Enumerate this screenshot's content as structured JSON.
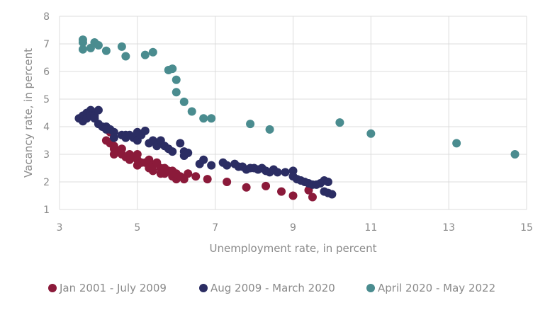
{
  "chart_data": {
    "type": "scatter",
    "title": "",
    "xlabel": "Unemployment rate, in percent",
    "ylabel": "Vacancy rate, in percent",
    "xlim": [
      3,
      15
    ],
    "ylim": [
      1,
      8
    ],
    "xticks": [
      3,
      5,
      7,
      9,
      11,
      13,
      15
    ],
    "yticks": [
      1,
      2,
      3,
      4,
      5,
      6,
      7,
      8
    ],
    "grid": true,
    "legend_position": "bottom",
    "series": [
      {
        "name": "Jan 2001 - July 2009",
        "color": "#8b1a3a",
        "points": [
          [
            4.2,
            3.5
          ],
          [
            4.3,
            3.8
          ],
          [
            4.3,
            3.4
          ],
          [
            4.4,
            3.3
          ],
          [
            4.4,
            3.2
          ],
          [
            4.5,
            3.1
          ],
          [
            4.4,
            3.0
          ],
          [
            4.6,
            3.2
          ],
          [
            4.6,
            3.0
          ],
          [
            4.7,
            2.9
          ],
          [
            4.8,
            3.0
          ],
          [
            4.8,
            2.8
          ],
          [
            4.9,
            2.9
          ],
          [
            5.0,
            3.0
          ],
          [
            5.0,
            2.8
          ],
          [
            5.1,
            2.7
          ],
          [
            5.0,
            2.6
          ],
          [
            5.2,
            2.7
          ],
          [
            5.3,
            2.8
          ],
          [
            5.3,
            2.5
          ],
          [
            5.4,
            2.6
          ],
          [
            5.4,
            2.4
          ],
          [
            5.5,
            2.7
          ],
          [
            5.6,
            2.5
          ],
          [
            5.6,
            2.3
          ],
          [
            5.7,
            2.5
          ],
          [
            5.7,
            2.3
          ],
          [
            5.8,
            2.4
          ],
          [
            5.9,
            2.2
          ],
          [
            5.9,
            2.4
          ],
          [
            6.0,
            2.1
          ],
          [
            6.0,
            2.3
          ],
          [
            6.1,
            2.2
          ],
          [
            6.2,
            2.1
          ],
          [
            6.3,
            2.3
          ],
          [
            6.5,
            2.2
          ],
          [
            6.8,
            2.1
          ],
          [
            7.3,
            2.0
          ],
          [
            7.8,
            1.8
          ],
          [
            8.3,
            1.85
          ],
          [
            8.7,
            1.65
          ],
          [
            9.0,
            1.5
          ],
          [
            9.4,
            1.7
          ],
          [
            9.5,
            1.45
          ]
        ]
      },
      {
        "name": "Aug 2009 - March 2020",
        "color": "#2b2d63",
        "points": [
          [
            3.5,
            4.3
          ],
          [
            3.6,
            4.4
          ],
          [
            3.6,
            4.2
          ],
          [
            3.7,
            4.5
          ],
          [
            3.7,
            4.3
          ],
          [
            3.8,
            4.6
          ],
          [
            3.8,
            4.4
          ],
          [
            3.9,
            4.4
          ],
          [
            3.9,
            4.3
          ],
          [
            4.0,
            4.6
          ],
          [
            4.0,
            4.1
          ],
          [
            4.1,
            4.0
          ],
          [
            4.2,
            4.0
          ],
          [
            4.2,
            3.9
          ],
          [
            4.3,
            3.9
          ],
          [
            4.4,
            3.8
          ],
          [
            4.4,
            3.6
          ],
          [
            4.6,
            3.7
          ],
          [
            4.7,
            3.7
          ],
          [
            4.7,
            3.6
          ],
          [
            4.8,
            3.7
          ],
          [
            4.9,
            3.6
          ],
          [
            5.0,
            3.8
          ],
          [
            5.0,
            3.5
          ],
          [
            5.1,
            3.7
          ],
          [
            5.2,
            3.85
          ],
          [
            5.3,
            3.4
          ],
          [
            5.4,
            3.5
          ],
          [
            5.5,
            3.3
          ],
          [
            5.6,
            3.5
          ],
          [
            5.7,
            3.3
          ],
          [
            5.8,
            3.2
          ],
          [
            5.9,
            3.1
          ],
          [
            6.1,
            3.4
          ],
          [
            6.2,
            3.1
          ],
          [
            6.2,
            2.95
          ],
          [
            6.3,
            3.05
          ],
          [
            6.6,
            2.65
          ],
          [
            6.7,
            2.8
          ],
          [
            6.9,
            2.6
          ],
          [
            7.2,
            2.7
          ],
          [
            7.3,
            2.6
          ],
          [
            7.5,
            2.65
          ],
          [
            7.6,
            2.55
          ],
          [
            7.7,
            2.55
          ],
          [
            7.8,
            2.45
          ],
          [
            7.9,
            2.5
          ],
          [
            8.0,
            2.5
          ],
          [
            8.1,
            2.45
          ],
          [
            8.2,
            2.5
          ],
          [
            8.3,
            2.4
          ],
          [
            8.4,
            2.35
          ],
          [
            8.5,
            2.45
          ],
          [
            8.6,
            2.35
          ],
          [
            8.8,
            2.35
          ],
          [
            9.0,
            2.4
          ],
          [
            9.0,
            2.2
          ],
          [
            9.1,
            2.1
          ],
          [
            9.2,
            2.05
          ],
          [
            9.3,
            2.0
          ],
          [
            9.4,
            1.95
          ],
          [
            9.5,
            1.9
          ],
          [
            9.6,
            1.9
          ],
          [
            9.7,
            1.95
          ],
          [
            9.8,
            2.05
          ],
          [
            9.9,
            2.0
          ],
          [
            9.8,
            1.65
          ],
          [
            9.9,
            1.6
          ],
          [
            10.0,
            1.55
          ]
        ]
      },
      {
        "name": "April 2020 - May 2022",
        "color": "#4a8c8f",
        "points": [
          [
            3.6,
            7.15
          ],
          [
            3.6,
            7.05
          ],
          [
            3.6,
            6.8
          ],
          [
            3.8,
            6.85
          ],
          [
            3.9,
            7.05
          ],
          [
            4.0,
            6.95
          ],
          [
            4.2,
            6.75
          ],
          [
            4.6,
            6.9
          ],
          [
            4.7,
            6.55
          ],
          [
            5.2,
            6.6
          ],
          [
            5.4,
            6.7
          ],
          [
            5.8,
            6.05
          ],
          [
            5.9,
            6.1
          ],
          [
            6.0,
            5.7
          ],
          [
            6.0,
            5.25
          ],
          [
            6.2,
            4.9
          ],
          [
            6.4,
            4.55
          ],
          [
            6.7,
            4.3
          ],
          [
            6.9,
            4.3
          ],
          [
            7.9,
            4.1
          ],
          [
            8.4,
            3.9
          ],
          [
            10.2,
            4.15
          ],
          [
            11.0,
            3.75
          ],
          [
            13.2,
            3.4
          ],
          [
            14.7,
            3.0
          ]
        ]
      }
    ]
  }
}
